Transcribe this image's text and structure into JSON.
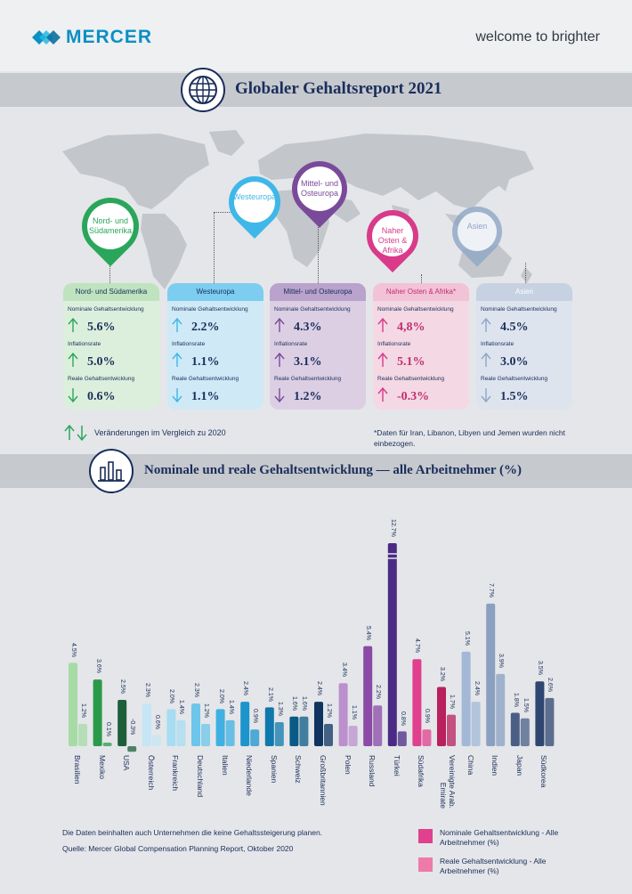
{
  "header": {
    "brand": "MERCER",
    "tagline": "welcome to brighter"
  },
  "section1": {
    "title": "Globaler Gehaltsreport 2021",
    "icon": "globe-icon"
  },
  "regions": [
    {
      "pin_label": "Nord- und Südamerika",
      "name": "Nord- und Südamerika",
      "color": "#2aa65a",
      "nominal_label": "Nominale Gehaltsentwicklung",
      "nominal": "5.6%",
      "nominal_dir": "up",
      "inflation_label": "Inflationsrate",
      "inflation": "5.0%",
      "inflation_dir": "up",
      "real_label": "Reale Gehaltsentwicklung",
      "real": "0.6%",
      "real_dir": "down"
    },
    {
      "pin_label": "Westeuropa",
      "name": "Westeuropa",
      "color": "#3fb7e8",
      "nominal_label": "Nominale Gehaltsentwicklung",
      "nominal": "2.2%",
      "nominal_dir": "up",
      "inflation_label": "Inflationsrate",
      "inflation": "1.1%",
      "inflation_dir": "up",
      "real_label": "Reale Gehaltsentwicklung",
      "real": "1.1%",
      "real_dir": "down"
    },
    {
      "pin_label": "Mittel- und Osteuropa",
      "name": "Mittel- und Osteuropa",
      "color": "#7a4a9a",
      "nominal_label": "Nominale Gehaltsentwicklung",
      "nominal": "4.3%",
      "nominal_dir": "up",
      "inflation_label": "Inflationsrate",
      "inflation": "3.1%",
      "inflation_dir": "up",
      "real_label": "Reale Gehaltsentwicklung",
      "real": "1.2%",
      "real_dir": "down"
    },
    {
      "pin_label": "Naher Osten & Afrika",
      "name": "Naher Osten & Afrika*",
      "color": "#d93a8a",
      "nominal_label": "Nominale Gehaltsentwicklung",
      "nominal": "4,8%",
      "nominal_dir": "up",
      "inflation_label": "Inflationsrate",
      "inflation": "5.1%",
      "inflation_dir": "up",
      "real_label": "Reale Gehaltsentwicklung",
      "real": "-0.3%",
      "real_dir": "up"
    },
    {
      "pin_label": "Asien",
      "name": "Asien",
      "color": "#8fa6c6",
      "nominal_label": "Nominale Gehaltsentwicklung",
      "nominal": "4.5%",
      "nominal_dir": "up",
      "inflation_label": "Inflationsrate",
      "inflation": "3.0%",
      "inflation_dir": "up",
      "real_label": "Reale Gehaltsentwicklung",
      "real": "1.5%",
      "real_dir": "down"
    }
  ],
  "legend_note": "Veränderungen im Vergleich zu 2020",
  "footnote": "*Daten für Iran, Libanon, Libyen und Jemen wurden nicht einbezogen.",
  "section2": {
    "title": "Nominale und reale Gehaltsentwicklung — alle Arbeitnehmer (%)",
    "icon": "bar-chart-icon"
  },
  "chart_data": {
    "type": "bar",
    "categories": [
      "Brasilien",
      "Mexiko",
      "USA",
      "Österreich",
      "Frankreich",
      "Deutschland",
      "Italien",
      "Niederlande",
      "Spanien",
      "Schweiz",
      "Großbritannien",
      "Polen",
      "Russland",
      "Türkei",
      "Südafrika",
      "Vereinigte Arab. Emirate",
      "China",
      "Indien",
      "Japan",
      "Südkorea"
    ],
    "series": [
      {
        "name": "Nominale Gehaltsentwicklung - Alle Arbeitnehmer (%)",
        "values": [
          4.5,
          3.6,
          2.5,
          2.3,
          2.0,
          2.3,
          2.0,
          2.4,
          2.1,
          1.6,
          2.4,
          3.4,
          5.4,
          12.7,
          4.7,
          3.2,
          5.1,
          7.7,
          1.8,
          3.5
        ]
      },
      {
        "name": "Reale Gehaltsentwicklung - Alle Arbeitnehmer (%)",
        "values": [
          1.2,
          0.1,
          -0.3,
          0.6,
          1.4,
          1.2,
          1.4,
          0.9,
          1.3,
          1.6,
          1.2,
          1.1,
          2.2,
          0.8,
          0.9,
          1.7,
          2.4,
          3.9,
          1.5,
          2.6
        ]
      }
    ],
    "value_labels": {
      "nominal": [
        "4.5%",
        "3.6%",
        "2.5%",
        "2.3%",
        "2.0%",
        "2.3%",
        "2.0%",
        "2.4%",
        "2.1%",
        "1.6%",
        "2.4%",
        "3.4%",
        "5.4%",
        "12.7%",
        "4.7%",
        "3.2%",
        "5.1%",
        "7.7%",
        "1.8%",
        "3.5%"
      ],
      "real": [
        "1.2%",
        "0.1%",
        "-0.3%",
        "0.6%",
        "1.4%",
        "1.2%",
        "1.4%",
        "0.9%",
        "1.3%",
        "1.6%",
        "1.2%",
        "1.1%",
        "2.2%",
        "0.8%",
        "0.9%",
        "1.7%",
        "2.4%",
        "3.9%",
        "1.5%",
        "2.6%"
      ]
    },
    "bar_colors": {
      "nominal": [
        "#a6dba6",
        "#2a9a4a",
        "#1e5e3a",
        "#c5e6f4",
        "#a7dcf2",
        "#6cc5ea",
        "#3fb0e2",
        "#1c94cc",
        "#0f78ac",
        "#0a5a86",
        "#0f3460",
        "#bb90cc",
        "#8a4aa6",
        "#4a2a84",
        "#e0408e",
        "#b8205e",
        "#a2b8d6",
        "#8aa0c0",
        "#4a5e86",
        "#2f4670"
      ],
      "real": [
        "#a6dba6",
        "#2a9a4a",
        "#1e5e3a",
        "#c5e6f4",
        "#a7dcf2",
        "#6cc5ea",
        "#3fb0e2",
        "#1c94cc",
        "#0f78ac",
        "#0a5a86",
        "#0f3460",
        "#bb90cc",
        "#8a4aa6",
        "#4a2a84",
        "#e0408e",
        "#b8205e",
        "#a2b8d6",
        "#8aa0c0",
        "#4a5e86",
        "#2f4670"
      ]
    },
    "title": "Nominale und reale Gehaltsentwicklung — alle Arbeitnehmer (%)",
    "ylim": [
      -0.3,
      12.7
    ],
    "axis_break": "Türkei",
    "grid": false
  },
  "source_note_1": "Die Daten beinhalten auch Unternehmen die keine Gehaltssteigerung planen.",
  "source_note_2": "Quelle: Mercer Global Compensation Planning Report, Oktober 2020",
  "legend": [
    {
      "label": "Nominale Gehaltsentwicklung - Alle Arbeitnehmer (%)",
      "color": "#e0408e"
    },
    {
      "label": "Reale Gehaltsentwicklung - Alle Arbeitnehmer (%)",
      "color": "#ee7aa8"
    }
  ]
}
